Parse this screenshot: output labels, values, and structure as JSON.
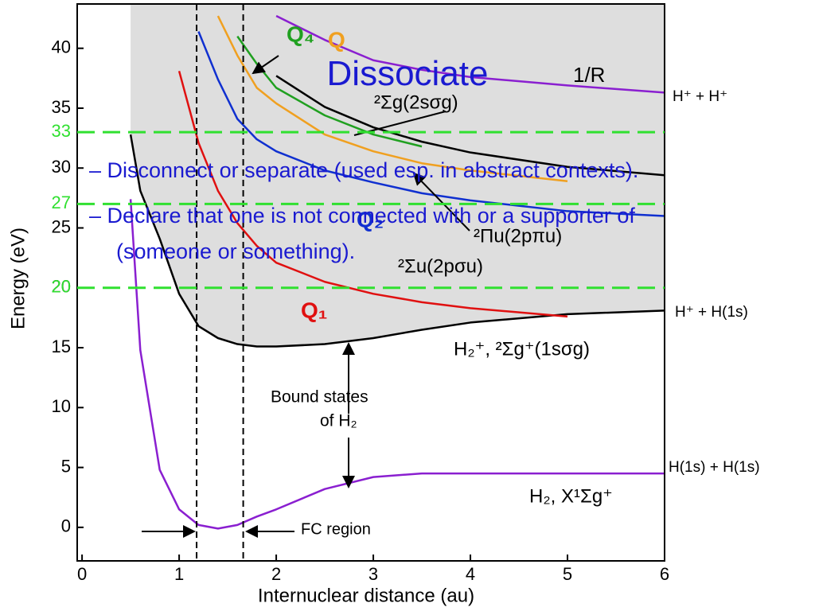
{
  "slide": {
    "title": "Dissociate",
    "bullets": [
      "– Disconnect or separate (used esp. in abstract contexts).",
      "– Declare that one is not connected with or a supporter of (someone or something)."
    ]
  },
  "chart_data": {
    "type": "line",
    "xlabel": "Internuclear distance (au)",
    "ylabel": "Energy (eV)",
    "x": [
      0.5,
      0.6,
      0.8,
      1.0,
      1.2,
      1.4,
      1.6,
      1.8,
      2.0,
      2.5,
      3.0,
      3.5,
      4.0,
      5.0,
      6.0
    ],
    "series": [
      {
        "name": "H₂, X¹Σg⁺",
        "color": "#8a1fd0",
        "values": [
          27.4,
          14.8,
          4.8,
          1.5,
          0.2,
          -0.1,
          0.2,
          0.9,
          1.5,
          3.2,
          4.2,
          4.5,
          4.5,
          4.5,
          4.5
        ]
      },
      {
        "name": "H₂⁺, ²Σg⁺(1sσg)",
        "color": "#000000",
        "shaded_color": "#dedede",
        "values": [
          32.8,
          28.1,
          24.1,
          19.5,
          16.8,
          15.8,
          15.3,
          15.1,
          15.1,
          15.3,
          15.8,
          16.5,
          17.1,
          17.8,
          18.1
        ]
      },
      {
        "name": "1/R",
        "color": "#8a1fd0",
        "values": [
          null,
          null,
          null,
          null,
          null,
          null,
          null,
          null,
          42.7,
          40.7,
          39.0,
          38.2,
          37.6,
          36.9,
          36.3
        ]
      },
      {
        "name": "Q₁",
        "color": "#e01010",
        "values": [
          null,
          null,
          null,
          38.1,
          32.1,
          28.1,
          25.4,
          23.5,
          22.1,
          20.5,
          19.5,
          18.8,
          18.3,
          17.6,
          null
        ]
      },
      {
        "name": "²Σu(2pσu)",
        "color": "#1030d0",
        "values": [
          null,
          null,
          null,
          null,
          41.4,
          37.4,
          34.1,
          32.4,
          31.4,
          29.8,
          28.8,
          27.9,
          27.3,
          26.4,
          26.0
        ]
      },
      {
        "name": "Q",
        "color": "#f0a020",
        "values": [
          null,
          null,
          null,
          null,
          null,
          42.7,
          39.4,
          36.7,
          35.4,
          32.8,
          31.4,
          30.4,
          29.8,
          28.9,
          null
        ]
      },
      {
        "name": "Q₄",
        "color": "#20a020",
        "values": [
          null,
          null,
          null,
          null,
          null,
          null,
          41.0,
          38.7,
          36.7,
          34.4,
          32.8,
          31.8,
          null,
          null,
          null
        ]
      },
      {
        "name": "²Σg(2sσg)",
        "color": "#000000",
        "values": [
          null,
          null,
          null,
          null,
          null,
          null,
          null,
          null,
          37.7,
          35.1,
          33.4,
          32.2,
          31.3,
          30.1,
          29.4
        ]
      }
    ],
    "xlim": [
      -0.05,
      6
    ],
    "ylim": [
      -2.8,
      43.7
    ],
    "xticks": [
      0,
      1,
      2,
      3,
      4,
      5,
      6
    ],
    "yticks": [
      0,
      5,
      10,
      15,
      20,
      25,
      30,
      35,
      40
    ],
    "ref_lines": [
      33,
      27,
      20
    ],
    "ref_color": "#30e030",
    "vlines": [
      1.18,
      1.66
    ],
    "annotations": [
      "Q₄",
      "Q",
      "Q₂",
      "Q₁",
      "1/R",
      "H⁺ + H⁺",
      "H⁺ + H(1s)",
      "H(1s) + H(1s)",
      "H₂⁺, ²Σg⁺(1sσg)",
      "H₂, X¹Σg⁺",
      "Bound states",
      "of H₂",
      "FC region",
      "²Σg(2sσg)",
      "²Πu(2pπu)",
      "²Σu(2pσu)"
    ]
  }
}
